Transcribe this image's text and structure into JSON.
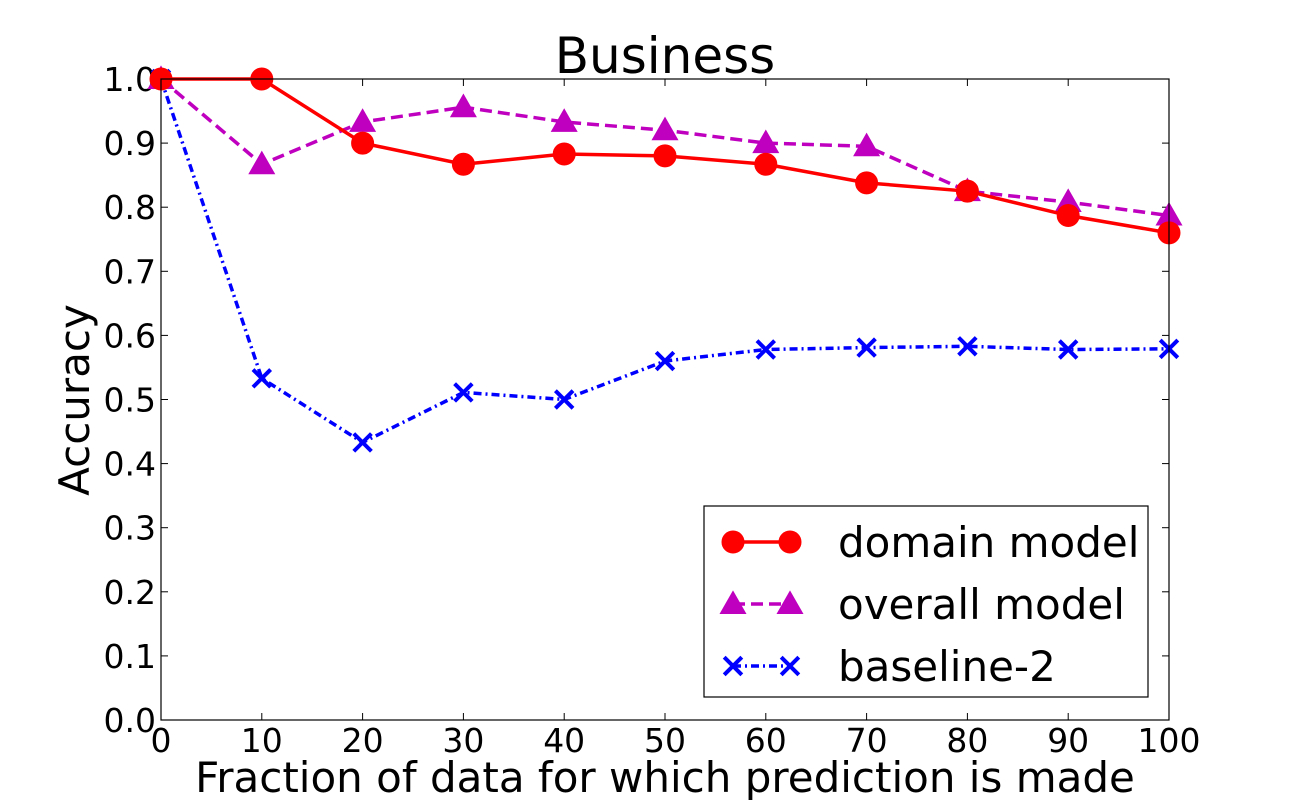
{
  "chart_data": {
    "type": "line",
    "title": "Business",
    "xlabel": "Fraction of data for which prediction is made",
    "ylabel": "Accuracy",
    "xlim": [
      0,
      100
    ],
    "ylim": [
      0.0,
      1.0
    ],
    "xticks": [
      0,
      10,
      20,
      30,
      40,
      50,
      60,
      70,
      80,
      90,
      100
    ],
    "xtick_labels": [
      "0",
      "10",
      "20",
      "30",
      "40",
      "50",
      "60",
      "70",
      "80",
      "90",
      "100"
    ],
    "yticks": [
      0.0,
      0.1,
      0.2,
      0.3,
      0.4,
      0.5,
      0.6,
      0.7,
      0.8,
      0.9,
      1.0
    ],
    "ytick_labels": [
      "0.0",
      "0.1",
      "0.2",
      "0.3",
      "0.4",
      "0.5",
      "0.6",
      "0.7",
      "0.8",
      "0.9",
      "1.0"
    ],
    "grid": false,
    "legend_position": "lower-right",
    "x": [
      0,
      10,
      20,
      30,
      40,
      50,
      60,
      70,
      80,
      90,
      100
    ],
    "series": [
      {
        "name": "domain model",
        "color": "#ff0000",
        "line_style": "solid",
        "marker": "circle",
        "values": [
          1.0,
          1.0,
          0.9,
          0.867,
          0.883,
          0.88,
          0.867,
          0.838,
          0.825,
          0.787,
          0.76
        ]
      },
      {
        "name": "overall model",
        "color": "#bf00bf",
        "line_style": "dashed",
        "marker": "triangle",
        "values": [
          1.0,
          0.867,
          0.933,
          0.956,
          0.933,
          0.92,
          0.9,
          0.895,
          0.825,
          0.808,
          0.787
        ]
      },
      {
        "name": "baseline-2",
        "color": "#0000ff",
        "line_style": "dashdot",
        "marker": "x",
        "values": [
          1.0,
          0.533,
          0.433,
          0.511,
          0.5,
          0.56,
          0.578,
          0.581,
          0.583,
          0.578,
          0.579
        ]
      }
    ]
  }
}
